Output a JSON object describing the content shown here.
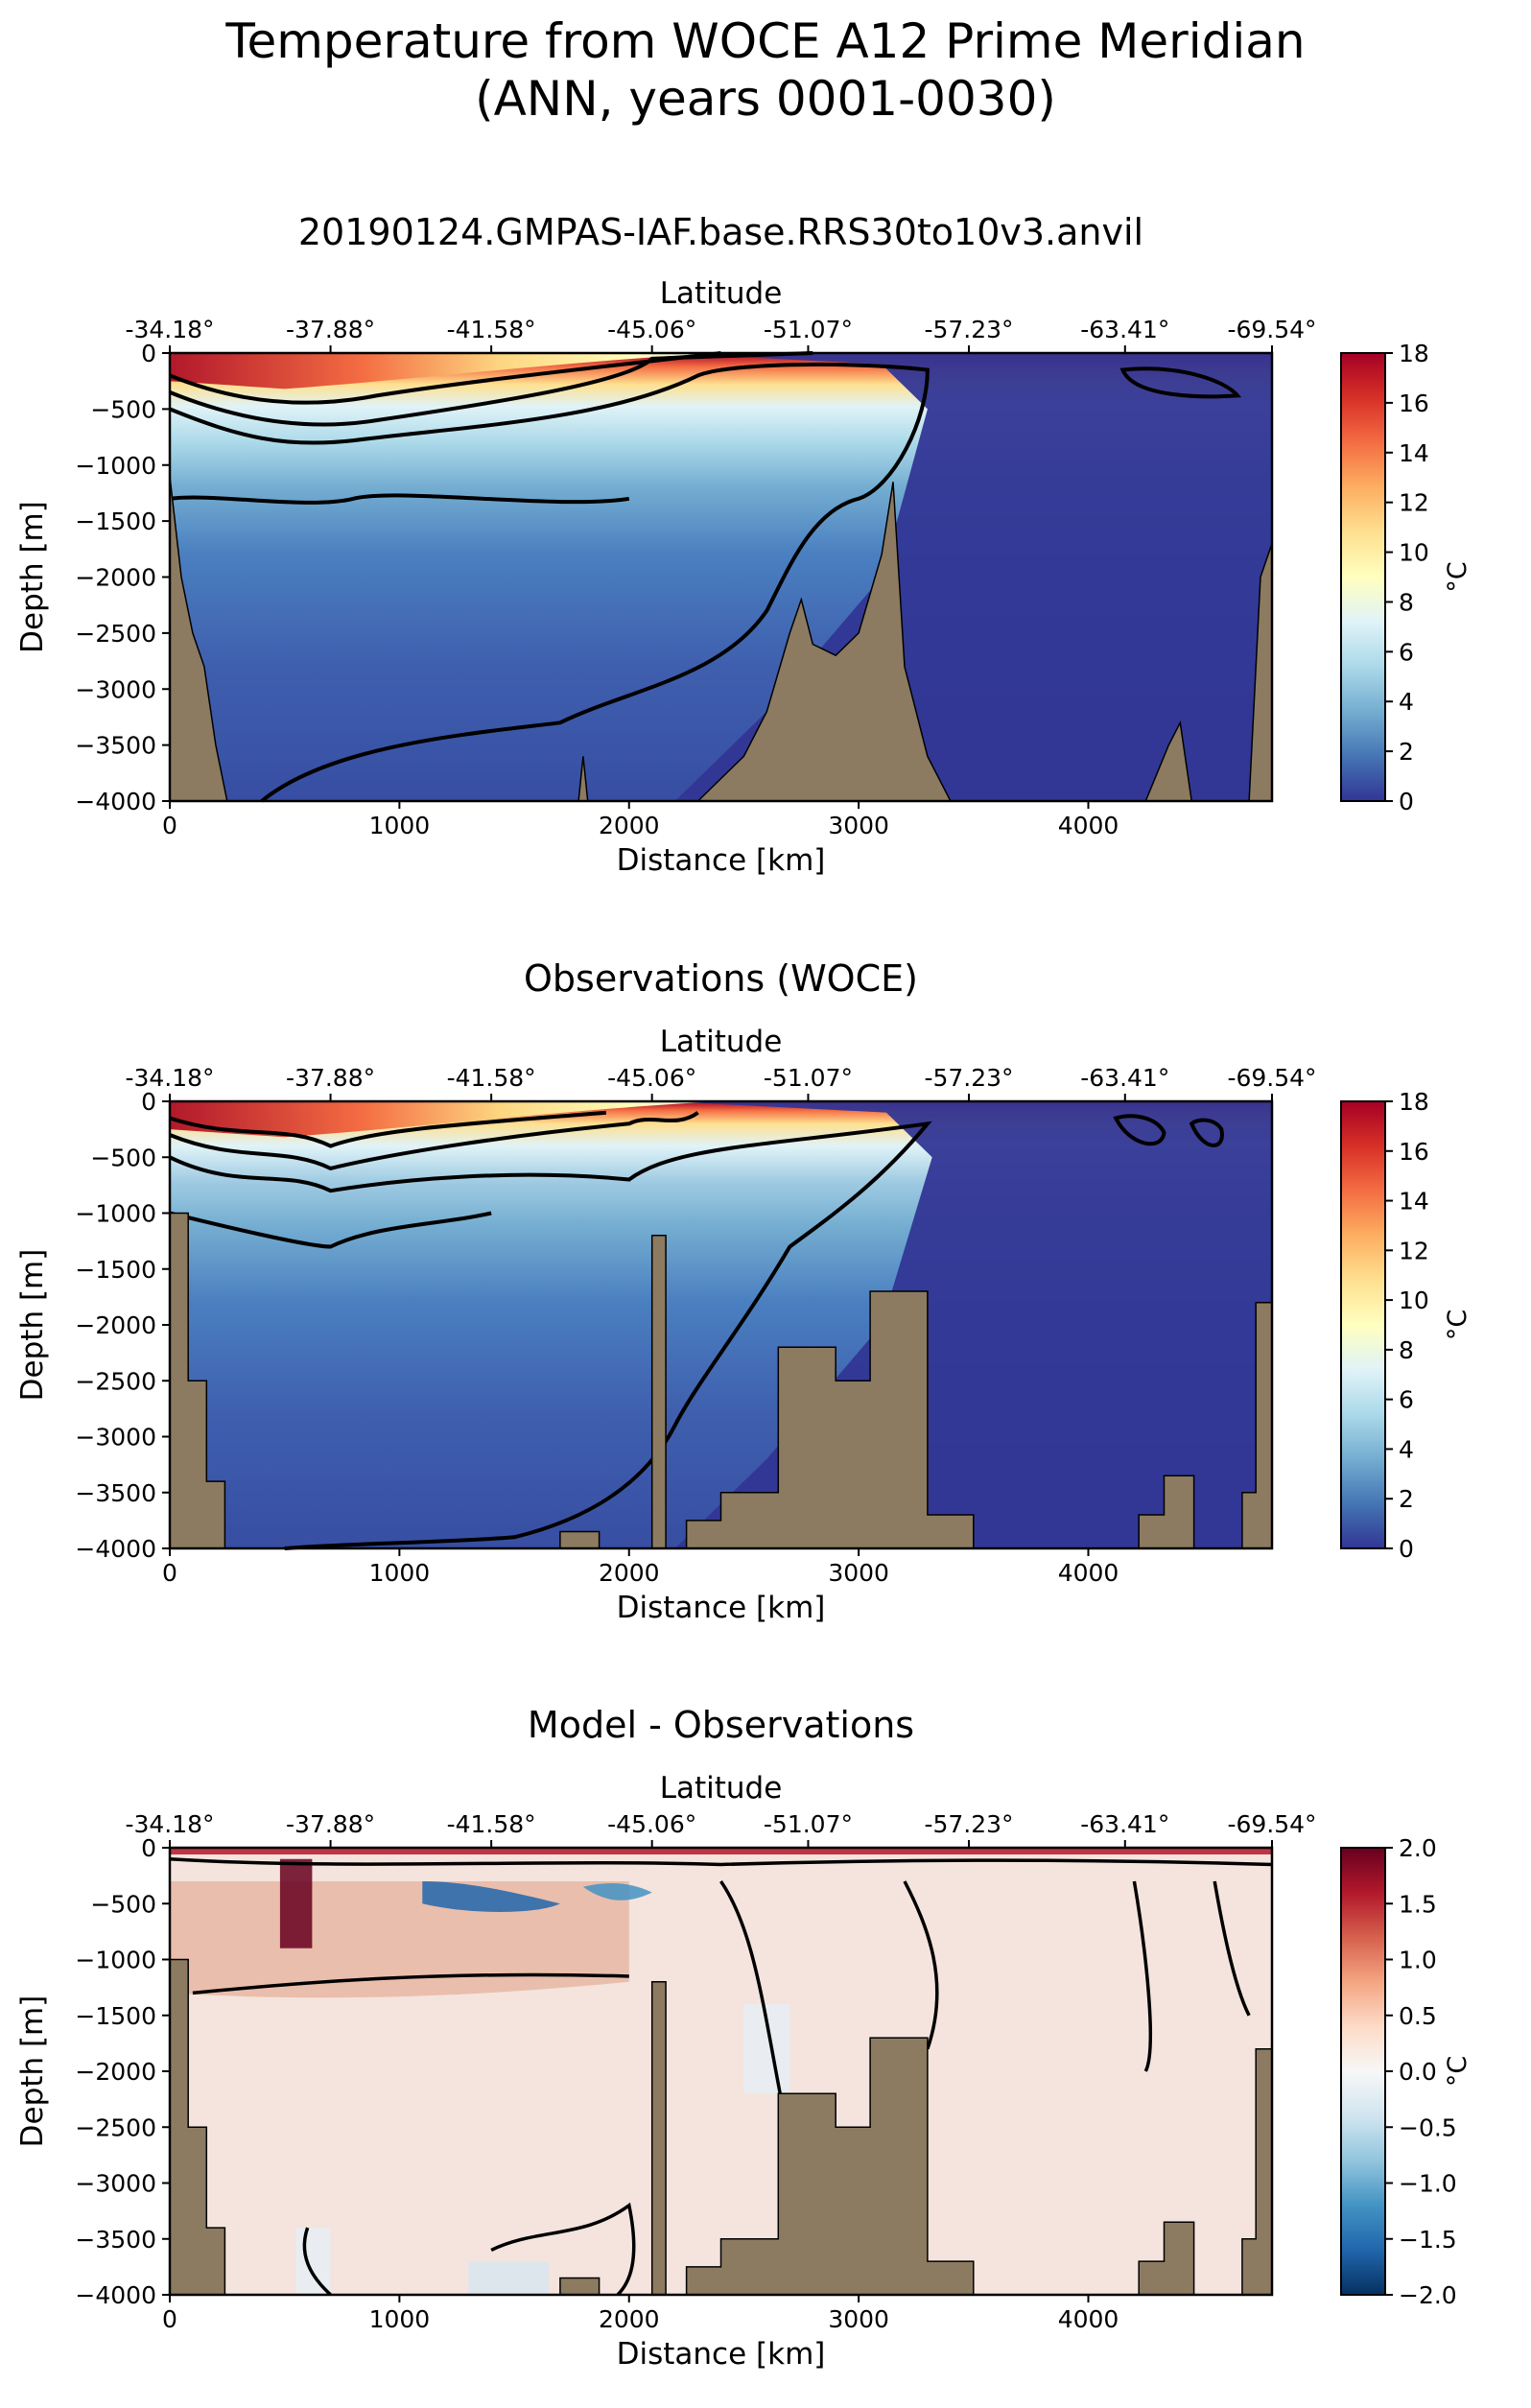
{
  "figure": {
    "suptitle_line1": "Temperature from WOCE A12 Prime Meridian",
    "suptitle_line2": "(ANN, years 0001-0030)"
  },
  "colors": {
    "bathymetry": "#8c7b61",
    "contour": "#000000",
    "frame": "#000000"
  },
  "chart_data": [
    {
      "type": "heatmap",
      "title": "20190124.GMPAS-IAF.base.RRS30to10v3.anvil",
      "xlabel": "Distance [km]",
      "ylabel": "Depth [m]",
      "top_xlabel": "Latitude",
      "xlim": [
        0,
        4800
      ],
      "ylim": [
        -4000,
        0
      ],
      "x_ticks": [
        0,
        1000,
        2000,
        3000,
        4000
      ],
      "x_tick_labels": [
        "0",
        "1000",
        "2000",
        "3000",
        "4000"
      ],
      "y_ticks": [
        0,
        -500,
        -1000,
        -1500,
        -2000,
        -2500,
        -3000,
        -3500,
        -4000
      ],
      "y_tick_labels": [
        "0",
        "−500",
        "−1000",
        "−1500",
        "−2000",
        "−2500",
        "−3000",
        "−3500",
        "−4000"
      ],
      "top_ticks_km": [
        0,
        700,
        1400,
        2100,
        2780,
        3480,
        4160,
        4800
      ],
      "top_tick_labels": [
        "-34.18°",
        "-37.88°",
        "-41.58°",
        "-45.06°",
        "-51.07°",
        "-57.23°",
        "-63.41°",
        "-69.54°"
      ],
      "colorbar": {
        "label": "°C",
        "colormap": "RdYlBu_r",
        "vmin": 0,
        "vmax": 18,
        "ticks": [
          0,
          2,
          4,
          6,
          8,
          10,
          12,
          14,
          16,
          18
        ],
        "tick_labels": [
          "0",
          "2",
          "4",
          "6",
          "8",
          "10",
          "12",
          "14",
          "16",
          "18"
        ]
      },
      "contour_levels": [
        0,
        2,
        4,
        6,
        8,
        10,
        12,
        14,
        16
      ],
      "bathymetry": [
        [
          0,
          -1100
        ],
        [
          50,
          -2000
        ],
        [
          100,
          -2500
        ],
        [
          150,
          -2800
        ],
        [
          200,
          -3500
        ],
        [
          250,
          -4000
        ],
        [
          1780,
          -4000
        ],
        [
          1800,
          -3600
        ],
        [
          1820,
          -4000
        ],
        [
          2300,
          -4000
        ],
        [
          2400,
          -3800
        ],
        [
          2500,
          -3600
        ],
        [
          2600,
          -3200
        ],
        [
          2700,
          -2500
        ],
        [
          2750,
          -2200
        ],
        [
          2800,
          -2600
        ],
        [
          2900,
          -2700
        ],
        [
          3000,
          -2500
        ],
        [
          3100,
          -1800
        ],
        [
          3150,
          -1150
        ],
        [
          3200,
          -2800
        ],
        [
          3300,
          -3600
        ],
        [
          3400,
          -4000
        ],
        [
          4250,
          -4000
        ],
        [
          4350,
          -3500
        ],
        [
          4400,
          -3300
        ],
        [
          4450,
          -4000
        ],
        [
          4700,
          -4000
        ],
        [
          4750,
          -2000
        ],
        [
          4800,
          -1700
        ]
      ],
      "dense_bathymetry": false
    },
    {
      "type": "heatmap",
      "title": "Observations (WOCE)",
      "xlabel": "Distance [km]",
      "ylabel": "Depth [m]",
      "top_xlabel": "Latitude",
      "xlim": [
        0,
        4800
      ],
      "ylim": [
        -4000,
        0
      ],
      "x_ticks": [
        0,
        1000,
        2000,
        3000,
        4000
      ],
      "x_tick_labels": [
        "0",
        "1000",
        "2000",
        "3000",
        "4000"
      ],
      "y_ticks": [
        0,
        -500,
        -1000,
        -1500,
        -2000,
        -2500,
        -3000,
        -3500,
        -4000
      ],
      "y_tick_labels": [
        "0",
        "−500",
        "−1000",
        "−1500",
        "−2000",
        "−2500",
        "−3000",
        "−3500",
        "−4000"
      ],
      "top_ticks_km": [
        0,
        700,
        1400,
        2100,
        2780,
        3480,
        4160,
        4800
      ],
      "top_tick_labels": [
        "-34.18°",
        "-37.88°",
        "-41.58°",
        "-45.06°",
        "-51.07°",
        "-57.23°",
        "-63.41°",
        "-69.54°"
      ],
      "colorbar": {
        "label": "°C",
        "colormap": "RdYlBu_r",
        "vmin": 0,
        "vmax": 18,
        "ticks": [
          0,
          2,
          4,
          6,
          8,
          10,
          12,
          14,
          16,
          18
        ],
        "tick_labels": [
          "0",
          "2",
          "4",
          "6",
          "8",
          "10",
          "12",
          "14",
          "16",
          "18"
        ]
      },
      "contour_levels": [
        0,
        2,
        4,
        6,
        8,
        10,
        12,
        14,
        16
      ],
      "bathymetry": [
        [
          0,
          -1000
        ],
        [
          80,
          -1000
        ],
        [
          80,
          -2500
        ],
        [
          160,
          -2500
        ],
        [
          160,
          -3400
        ],
        [
          240,
          -3400
        ],
        [
          240,
          -4000
        ],
        [
          1700,
          -4000
        ],
        [
          1700,
          -3850
        ],
        [
          1870,
          -3850
        ],
        [
          1870,
          -4000
        ],
        [
          2100,
          -4000
        ],
        [
          2100,
          -1200
        ],
        [
          2160,
          -1200
        ],
        [
          2160,
          -4000
        ],
        [
          2250,
          -4000
        ],
        [
          2250,
          -3750
        ],
        [
          2400,
          -3750
        ],
        [
          2400,
          -3500
        ],
        [
          2650,
          -3500
        ],
        [
          2650,
          -2200
        ],
        [
          2900,
          -2200
        ],
        [
          2900,
          -2500
        ],
        [
          3050,
          -2500
        ],
        [
          3050,
          -1700
        ],
        [
          3300,
          -1700
        ],
        [
          3300,
          -3700
        ],
        [
          3500,
          -3700
        ],
        [
          3500,
          -4000
        ],
        [
          4220,
          -4000
        ],
        [
          4220,
          -3700
        ],
        [
          4330,
          -3700
        ],
        [
          4330,
          -3350
        ],
        [
          4460,
          -3350
        ],
        [
          4460,
          -4000
        ],
        [
          4670,
          -4000
        ],
        [
          4670,
          -3500
        ],
        [
          4730,
          -3500
        ],
        [
          4730,
          -1800
        ],
        [
          4800,
          -1800
        ]
      ],
      "dense_bathymetry": false
    },
    {
      "type": "heatmap",
      "title": "Model - Observations",
      "xlabel": "Distance [km]",
      "ylabel": "Depth [m]",
      "top_xlabel": "Latitude",
      "xlim": [
        0,
        4800
      ],
      "ylim": [
        -4000,
        0
      ],
      "x_ticks": [
        0,
        1000,
        2000,
        3000,
        4000
      ],
      "x_tick_labels": [
        "0",
        "1000",
        "2000",
        "3000",
        "4000"
      ],
      "y_ticks": [
        0,
        -500,
        -1000,
        -1500,
        -2000,
        -2500,
        -3000,
        -3500,
        -4000
      ],
      "y_tick_labels": [
        "0",
        "−500",
        "−1000",
        "−1500",
        "−2000",
        "−2500",
        "−3000",
        "−3500",
        "−4000"
      ],
      "top_ticks_km": [
        0,
        700,
        1400,
        2100,
        2780,
        3480,
        4160,
        4800
      ],
      "top_tick_labels": [
        "-34.18°",
        "-37.88°",
        "-41.58°",
        "-45.06°",
        "-51.07°",
        "-57.23°",
        "-63.41°",
        "-69.54°"
      ],
      "colorbar": {
        "label": "°C",
        "colormap": "RdBu_r",
        "vmin": -2.0,
        "vmax": 2.0,
        "ticks": [
          2.0,
          1.5,
          1.0,
          0.5,
          0.0,
          -0.5,
          -1.0,
          -1.5,
          -2.0
        ],
        "tick_labels": [
          "2.0",
          "1.5",
          "1.0",
          "0.5",
          "0.0",
          "−0.5",
          "−1.0",
          "−1.5",
          "−2.0"
        ]
      },
      "contour_levels": [
        -2.0,
        -1.5,
        -1.0,
        -0.5,
        0.0,
        0.5,
        1.0,
        1.5,
        2.0
      ],
      "bathymetry": [
        [
          0,
          -1000
        ],
        [
          80,
          -1000
        ],
        [
          80,
          -2500
        ],
        [
          160,
          -2500
        ],
        [
          160,
          -3400
        ],
        [
          240,
          -3400
        ],
        [
          240,
          -4000
        ],
        [
          1700,
          -4000
        ],
        [
          1700,
          -3850
        ],
        [
          1870,
          -3850
        ],
        [
          1870,
          -4000
        ],
        [
          2100,
          -4000
        ],
        [
          2100,
          -1200
        ],
        [
          2160,
          -1200
        ],
        [
          2160,
          -4000
        ],
        [
          2250,
          -4000
        ],
        [
          2250,
          -3750
        ],
        [
          2400,
          -3750
        ],
        [
          2400,
          -3500
        ],
        [
          2650,
          -3500
        ],
        [
          2650,
          -2200
        ],
        [
          2900,
          -2200
        ],
        [
          2900,
          -2500
        ],
        [
          3050,
          -2500
        ],
        [
          3050,
          -1700
        ],
        [
          3300,
          -1700
        ],
        [
          3300,
          -3700
        ],
        [
          3500,
          -3700
        ],
        [
          3500,
          -4000
        ],
        [
          4220,
          -4000
        ],
        [
          4220,
          -3700
        ],
        [
          4330,
          -3700
        ],
        [
          4330,
          -3350
        ],
        [
          4460,
          -3350
        ],
        [
          4460,
          -4000
        ],
        [
          4670,
          -4000
        ],
        [
          4670,
          -3500
        ],
        [
          4730,
          -3500
        ],
        [
          4730,
          -1800
        ],
        [
          4800,
          -1800
        ]
      ],
      "dense_bathymetry": false
    }
  ]
}
